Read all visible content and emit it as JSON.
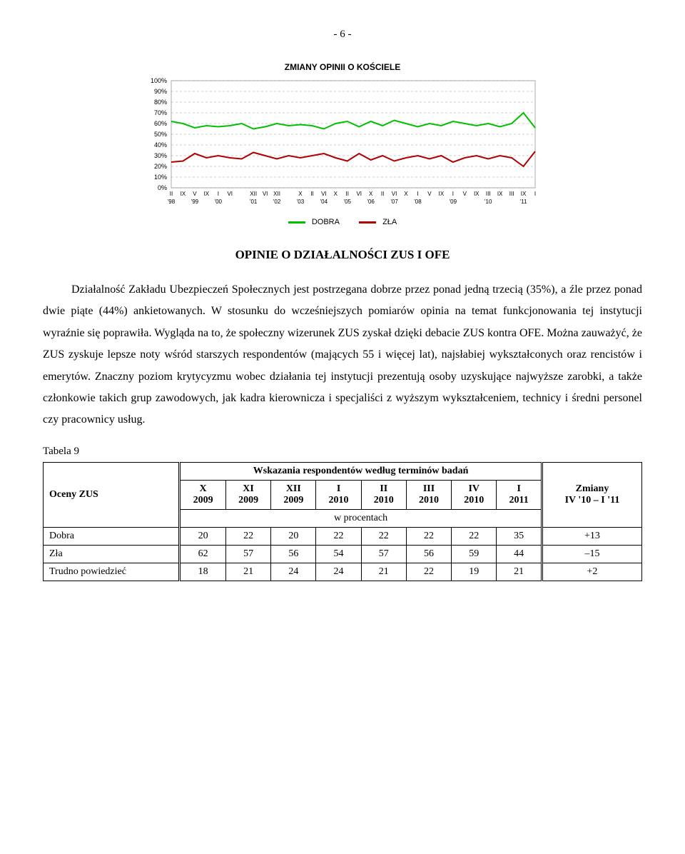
{
  "page_number": "- 6 -",
  "chart": {
    "type": "line",
    "title": "ZMIANY OPINII O KOŚCIELE",
    "title_fontsize": 12,
    "background_color": "#ffffff",
    "grid_color": "#999999",
    "ylim": [
      0,
      100
    ],
    "ytick_step": 10,
    "yticks": [
      "0%",
      "10%",
      "20%",
      "30%",
      "40%",
      "50%",
      "60%",
      "70%",
      "80%",
      "90%",
      "100%"
    ],
    "x_labels_top": [
      "II",
      "IX",
      "V",
      "IX",
      "I",
      "VI",
      "",
      "XII",
      "VI",
      "XII",
      "",
      "X",
      "II",
      "VI",
      "X",
      "II",
      "VI",
      "X",
      "II",
      "VI",
      "X",
      "I",
      "V",
      "IX",
      "I",
      "V",
      "IX",
      "III",
      "IX",
      "III",
      "IX",
      "I"
    ],
    "x_labels_bottom": [
      "'98",
      "",
      "'99",
      "",
      "'00",
      "",
      "",
      "'01",
      "",
      "'02",
      "",
      "'03",
      "",
      "'04",
      "",
      "'05",
      "",
      "'06",
      "",
      "'07",
      "",
      "'08",
      "",
      "",
      "'09",
      "",
      "",
      "'10",
      "",
      "",
      "'11",
      ""
    ],
    "series": [
      {
        "name": "DOBRA",
        "color": "#00c000",
        "line_width": 2,
        "values": [
          62,
          60,
          56,
          58,
          57,
          58,
          60,
          55,
          57,
          60,
          58,
          59,
          58,
          55,
          60,
          62,
          57,
          62,
          58,
          63,
          60,
          57,
          60,
          58,
          62,
          60,
          58,
          60,
          57,
          60,
          70,
          56
        ]
      },
      {
        "name": "ZŁA",
        "color": "#b00000",
        "line_width": 2,
        "values": [
          24,
          25,
          32,
          28,
          30,
          28,
          27,
          33,
          30,
          27,
          30,
          28,
          30,
          32,
          28,
          25,
          32,
          26,
          30,
          25,
          28,
          30,
          27,
          30,
          24,
          28,
          30,
          27,
          30,
          28,
          20,
          34
        ]
      }
    ],
    "legend_labels": [
      "DOBRA",
      "ZŁA"
    ]
  },
  "section_heading": "OPINIE O DZIAŁALNOŚCI ZUS I OFE",
  "paragraph": "Działalność Zakładu Ubezpieczeń Społecznych jest postrzegana dobrze przez ponad jedną trzecią (35%), a źle przez ponad dwie piąte (44%) ankietowanych. W stosunku do wcześniejszych pomiarów opinia na temat funkcjonowania tej instytucji wyraźnie się poprawiła. Wygląda na to, że społeczny wizerunek ZUS zyskał dzięki debacie ZUS kontra OFE.  Można zauważyć, że ZUS zyskuje lepsze noty wśród starszych respondentów (mających 55 i więcej lat), najsłabiej wykształconych oraz rencistów i emerytów. Znaczny poziom krytycyzmu wobec działania tej instytucji prezentują osoby uzyskujące najwyższe zarobki, a także członkowie takich grup zawodowych, jak kadra kierownicza i specjaliści z wyższym wykształceniem, technicy i średni personel czy pracownicy usług.",
  "table_label": "Tabela 9",
  "table": {
    "header_top": "Wskazania respondentów według terminów badań",
    "row_header_label": "Oceny ZUS",
    "change_header_top": "Zmiany",
    "change_header_bot": "IV '10 – I '11",
    "sub_row": "w procentach",
    "columns_top": [
      "X",
      "XI",
      "XII",
      "I",
      "II",
      "III",
      "IV",
      "I"
    ],
    "columns_bot": [
      "2009",
      "2009",
      "2009",
      "2010",
      "2010",
      "2010",
      "2010",
      "2011"
    ],
    "rows": [
      {
        "label": "Dobra",
        "cells": [
          "20",
          "22",
          "20",
          "22",
          "22",
          "22",
          "22",
          "35"
        ],
        "change": "+13"
      },
      {
        "label": "Zła",
        "cells": [
          "62",
          "57",
          "56",
          "54",
          "57",
          "56",
          "59",
          "44"
        ],
        "change": "–15"
      },
      {
        "label": "Trudno powiedzieć",
        "cells": [
          "18",
          "21",
          "24",
          "24",
          "21",
          "22",
          "19",
          "21"
        ],
        "change": "+2"
      }
    ]
  }
}
